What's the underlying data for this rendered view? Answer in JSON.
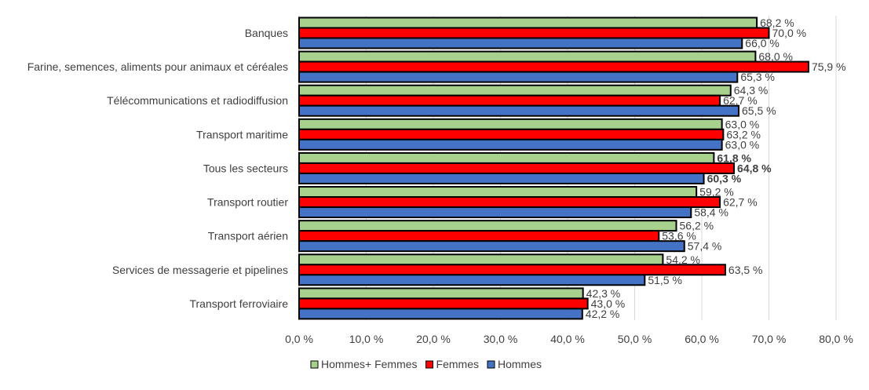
{
  "chart_data": {
    "type": "bar",
    "orientation": "horizontal",
    "categories": [
      "Banques",
      "Farine, semences, aliments pour animaux et céréales",
      "Télécommunications et radiodiffusion",
      "Transport maritime",
      "Tous les secteurs",
      "Transport routier",
      "Transport aérien",
      "Services de messagerie et pipelines",
      "Transport ferroviaire"
    ],
    "series": [
      {
        "name": "Hommes+ Femmes",
        "color": "#a9d18e",
        "values": [
          68.2,
          68.0,
          64.3,
          63.0,
          61.8,
          59.2,
          56.2,
          54.2,
          42.3
        ],
        "labels": [
          "68,2 %",
          "68,0 %",
          "64,3 %",
          "63,0 %",
          "61,8 %",
          "59,2 %",
          "56,2 %",
          "54,2 %",
          "42,3 %"
        ]
      },
      {
        "name": "Femmes",
        "color": "#ff0000",
        "values": [
          70.0,
          75.9,
          62.7,
          63.2,
          64.8,
          62.7,
          53.6,
          63.5,
          43.0
        ],
        "labels": [
          "70,0 %",
          "75,9 %",
          "62,7 %",
          "63,2 %",
          "64,8 %",
          "62,7 %",
          "53,6 %",
          "63,5 %",
          "43,0 %"
        ]
      },
      {
        "name": "Hommes",
        "color": "#4472c4",
        "values": [
          66.0,
          65.3,
          65.5,
          63.0,
          60.3,
          58.4,
          57.4,
          51.5,
          42.2
        ],
        "labels": [
          "66,0 %",
          "65,3 %",
          "65,5 %",
          "63,0 %",
          "60,3 %",
          "58,4 %",
          "57,4 %",
          "51,5 %",
          "42,2 %"
        ]
      }
    ],
    "bold_category": "Tous les secteurs",
    "xlim": [
      0,
      80
    ],
    "xticks": [
      0,
      10,
      20,
      30,
      40,
      50,
      60,
      70,
      80
    ],
    "xtick_labels": [
      "0,0 %",
      "10,0 %",
      "20,0 %",
      "30,0 %",
      "40,0 %",
      "50,0 %",
      "60,0 %",
      "70,0 %",
      "80,0 %"
    ],
    "grid": "vertical",
    "legend_position": "bottom"
  }
}
